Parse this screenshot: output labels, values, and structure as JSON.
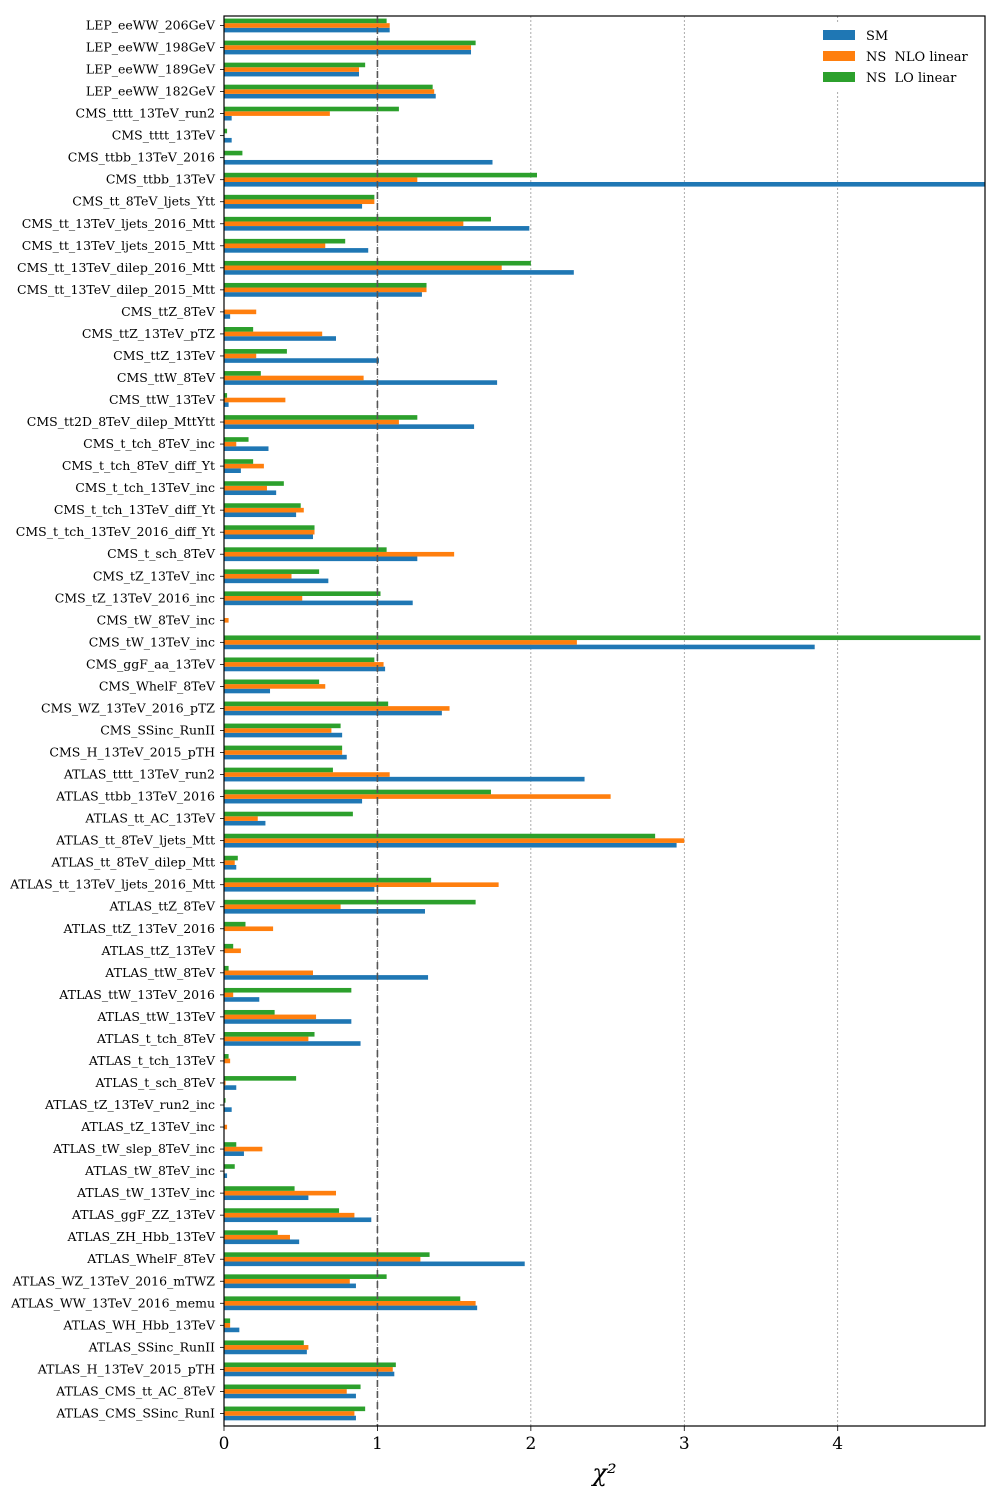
{
  "chart_data": {
    "type": "bar",
    "orientation": "horizontal",
    "title": "",
    "xlabel": "χ²",
    "ylabel": "",
    "xlim": [
      0,
      4.96
    ],
    "xticks": [
      0,
      1,
      2,
      3,
      4
    ],
    "reference_line": 1,
    "grid": "vertical dotted at x ticks",
    "legend_position": "top-right",
    "categories": [
      "LEP_eeWW_206GeV",
      "LEP_eeWW_198GeV",
      "LEP_eeWW_189GeV",
      "LEP_eeWW_182GeV",
      "CMS_tttt_13TeV_run2",
      "CMS_tttt_13TeV",
      "CMS_ttbb_13TeV_2016",
      "CMS_ttbb_13TeV",
      "CMS_tt_8TeV_ljets_Ytt",
      "CMS_tt_13TeV_ljets_2016_Mtt",
      "CMS_tt_13TeV_ljets_2015_Mtt",
      "CMS_tt_13TeV_dilep_2016_Mtt",
      "CMS_tt_13TeV_dilep_2015_Mtt",
      "CMS_ttZ_8TeV",
      "CMS_ttZ_13TeV_pTZ",
      "CMS_ttZ_13TeV",
      "CMS_ttW_8TeV",
      "CMS_ttW_13TeV",
      "CMS_tt2D_8TeV_dilep_MttYtt",
      "CMS_t_tch_8TeV_inc",
      "CMS_t_tch_8TeV_diff_Yt",
      "CMS_t_tch_13TeV_inc",
      "CMS_t_tch_13TeV_diff_Yt",
      "CMS_t_tch_13TeV_2016_diff_Yt",
      "CMS_t_sch_8TeV",
      "CMS_tZ_13TeV_inc",
      "CMS_tZ_13TeV_2016_inc",
      "CMS_tW_8TeV_inc",
      "CMS_tW_13TeV_inc",
      "CMS_ggF_aa_13TeV",
      "CMS_WhelF_8TeV",
      "CMS_WZ_13TeV_2016_pTZ",
      "CMS_SSinc_RunII",
      "CMS_H_13TeV_2015_pTH",
      "ATLAS_tttt_13TeV_run2",
      "ATLAS_ttbb_13TeV_2016",
      "ATLAS_tt_AC_13TeV",
      "ATLAS_tt_8TeV_ljets_Mtt",
      "ATLAS_tt_8TeV_dilep_Mtt",
      "ATLAS_tt_13TeV_ljets_2016_Mtt",
      "ATLAS_ttZ_8TeV",
      "ATLAS_ttZ_13TeV_2016",
      "ATLAS_ttZ_13TeV",
      "ATLAS_ttW_8TeV",
      "ATLAS_ttW_13TeV_2016",
      "ATLAS_ttW_13TeV",
      "ATLAS_t_tch_8TeV",
      "ATLAS_t_tch_13TeV",
      "ATLAS_t_sch_8TeV",
      "ATLAS_tZ_13TeV_run2_inc",
      "ATLAS_tZ_13TeV_inc",
      "ATLAS_tW_slep_8TeV_inc",
      "ATLAS_tW_8TeV_inc",
      "ATLAS_tW_13TeV_inc",
      "ATLAS_ggF_ZZ_13TeV",
      "ATLAS_ZH_Hbb_13TeV",
      "ATLAS_WhelF_8TeV",
      "ATLAS_WZ_13TeV_2016_mTWZ",
      "ATLAS_WW_13TeV_2016_memu",
      "ATLAS_WH_Hbb_13TeV",
      "ATLAS_SSinc_RunII",
      "ATLAS_H_13TeV_2015_pTH",
      "ATLAS_CMS_tt_AC_8TeV",
      "ATLAS_CMS_SSinc_RunI"
    ],
    "series": [
      {
        "name": "SM",
        "color": "#1f77b4",
        "values": [
          1.08,
          1.61,
          0.88,
          1.38,
          0.05,
          0.05,
          1.75,
          4.96,
          0.9,
          1.99,
          0.94,
          2.28,
          1.29,
          0.04,
          0.73,
          1.01,
          1.78,
          0.03,
          1.63,
          0.29,
          0.11,
          0.34,
          0.47,
          0.58,
          1.26,
          0.68,
          1.23,
          0.0,
          3.85,
          1.05,
          0.3,
          1.42,
          0.77,
          0.8,
          2.35,
          0.9,
          0.27,
          2.95,
          0.08,
          0.98,
          1.31,
          0.0,
          0.0,
          1.33,
          0.23,
          0.83,
          0.89,
          0.0,
          0.08,
          0.05,
          0.0,
          0.13,
          0.02,
          0.55,
          0.96,
          0.49,
          1.96,
          0.86,
          1.65,
          0.1,
          0.54,
          1.11,
          0.86,
          0.86
        ]
      },
      {
        "name": "NS  NLO linear",
        "color": "#ff7f0e",
        "values": [
          1.08,
          1.61,
          0.88,
          1.37,
          0.69,
          0.0,
          0.0,
          1.26,
          0.98,
          1.56,
          0.66,
          1.81,
          1.32,
          0.21,
          0.64,
          0.21,
          0.91,
          0.4,
          1.14,
          0.08,
          0.26,
          0.28,
          0.52,
          0.59,
          1.5,
          0.44,
          0.51,
          0.03,
          2.3,
          1.04,
          0.66,
          1.47,
          0.7,
          0.77,
          1.08,
          2.52,
          0.22,
          3.0,
          0.07,
          1.79,
          0.76,
          0.32,
          0.11,
          0.58,
          0.06,
          0.6,
          0.55,
          0.04,
          0.01,
          0.0,
          0.02,
          0.25,
          0.0,
          0.73,
          0.85,
          0.43,
          1.28,
          0.82,
          1.64,
          0.04,
          0.55,
          1.1,
          0.8,
          0.85
        ]
      },
      {
        "name": "NS  LO linear",
        "color": "#2ca02c",
        "values": [
          1.06,
          1.64,
          0.92,
          1.36,
          1.14,
          0.02,
          0.12,
          2.04,
          0.98,
          1.74,
          0.79,
          2.0,
          1.32,
          0.0,
          0.19,
          0.41,
          0.24,
          0.02,
          1.26,
          0.16,
          0.19,
          0.39,
          0.5,
          0.59,
          1.06,
          0.62,
          1.02,
          0.0,
          4.93,
          0.98,
          0.62,
          1.07,
          0.76,
          0.77,
          0.71,
          1.74,
          0.84,
          2.81,
          0.09,
          1.35,
          1.64,
          0.14,
          0.06,
          0.03,
          0.83,
          0.33,
          0.59,
          0.03,
          0.47,
          0.01,
          0.0,
          0.08,
          0.07,
          0.46,
          0.75,
          0.35,
          1.34,
          1.06,
          1.54,
          0.04,
          0.52,
          1.12,
          0.89,
          0.92
        ]
      }
    ]
  }
}
